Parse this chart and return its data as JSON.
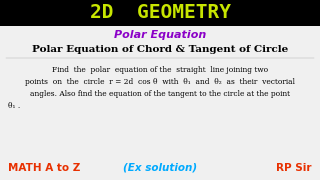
{
  "title": "2D  GEOMETRY",
  "title_bg": "#000000",
  "title_color": "#c8e600",
  "subtitle": "Polar Equation",
  "subtitle_color": "#8b00c8",
  "heading": "Polar Equation of Chord & Tangent of Circle",
  "heading_color": "#000000",
  "body_line1": "Find  the  polar  equation of the  straight  line joining two",
  "body_line2": "points  on  the  circle  r = 2d  cos θ  with  θ₁  and  θ₂  as  their  vectorial",
  "body_line3": "angles. Also find the equation of the tangent to the circle at the point",
  "body_line4": "θ₁ .",
  "footer_left": "MATH A to Z",
  "footer_left_color": "#e83000",
  "footer_mid": "(Ex solution)",
  "footer_mid_color": "#00aaff",
  "footer_right": "RP Sir",
  "footer_right_color": "#e83000",
  "bg_color": "#f0f0f0"
}
